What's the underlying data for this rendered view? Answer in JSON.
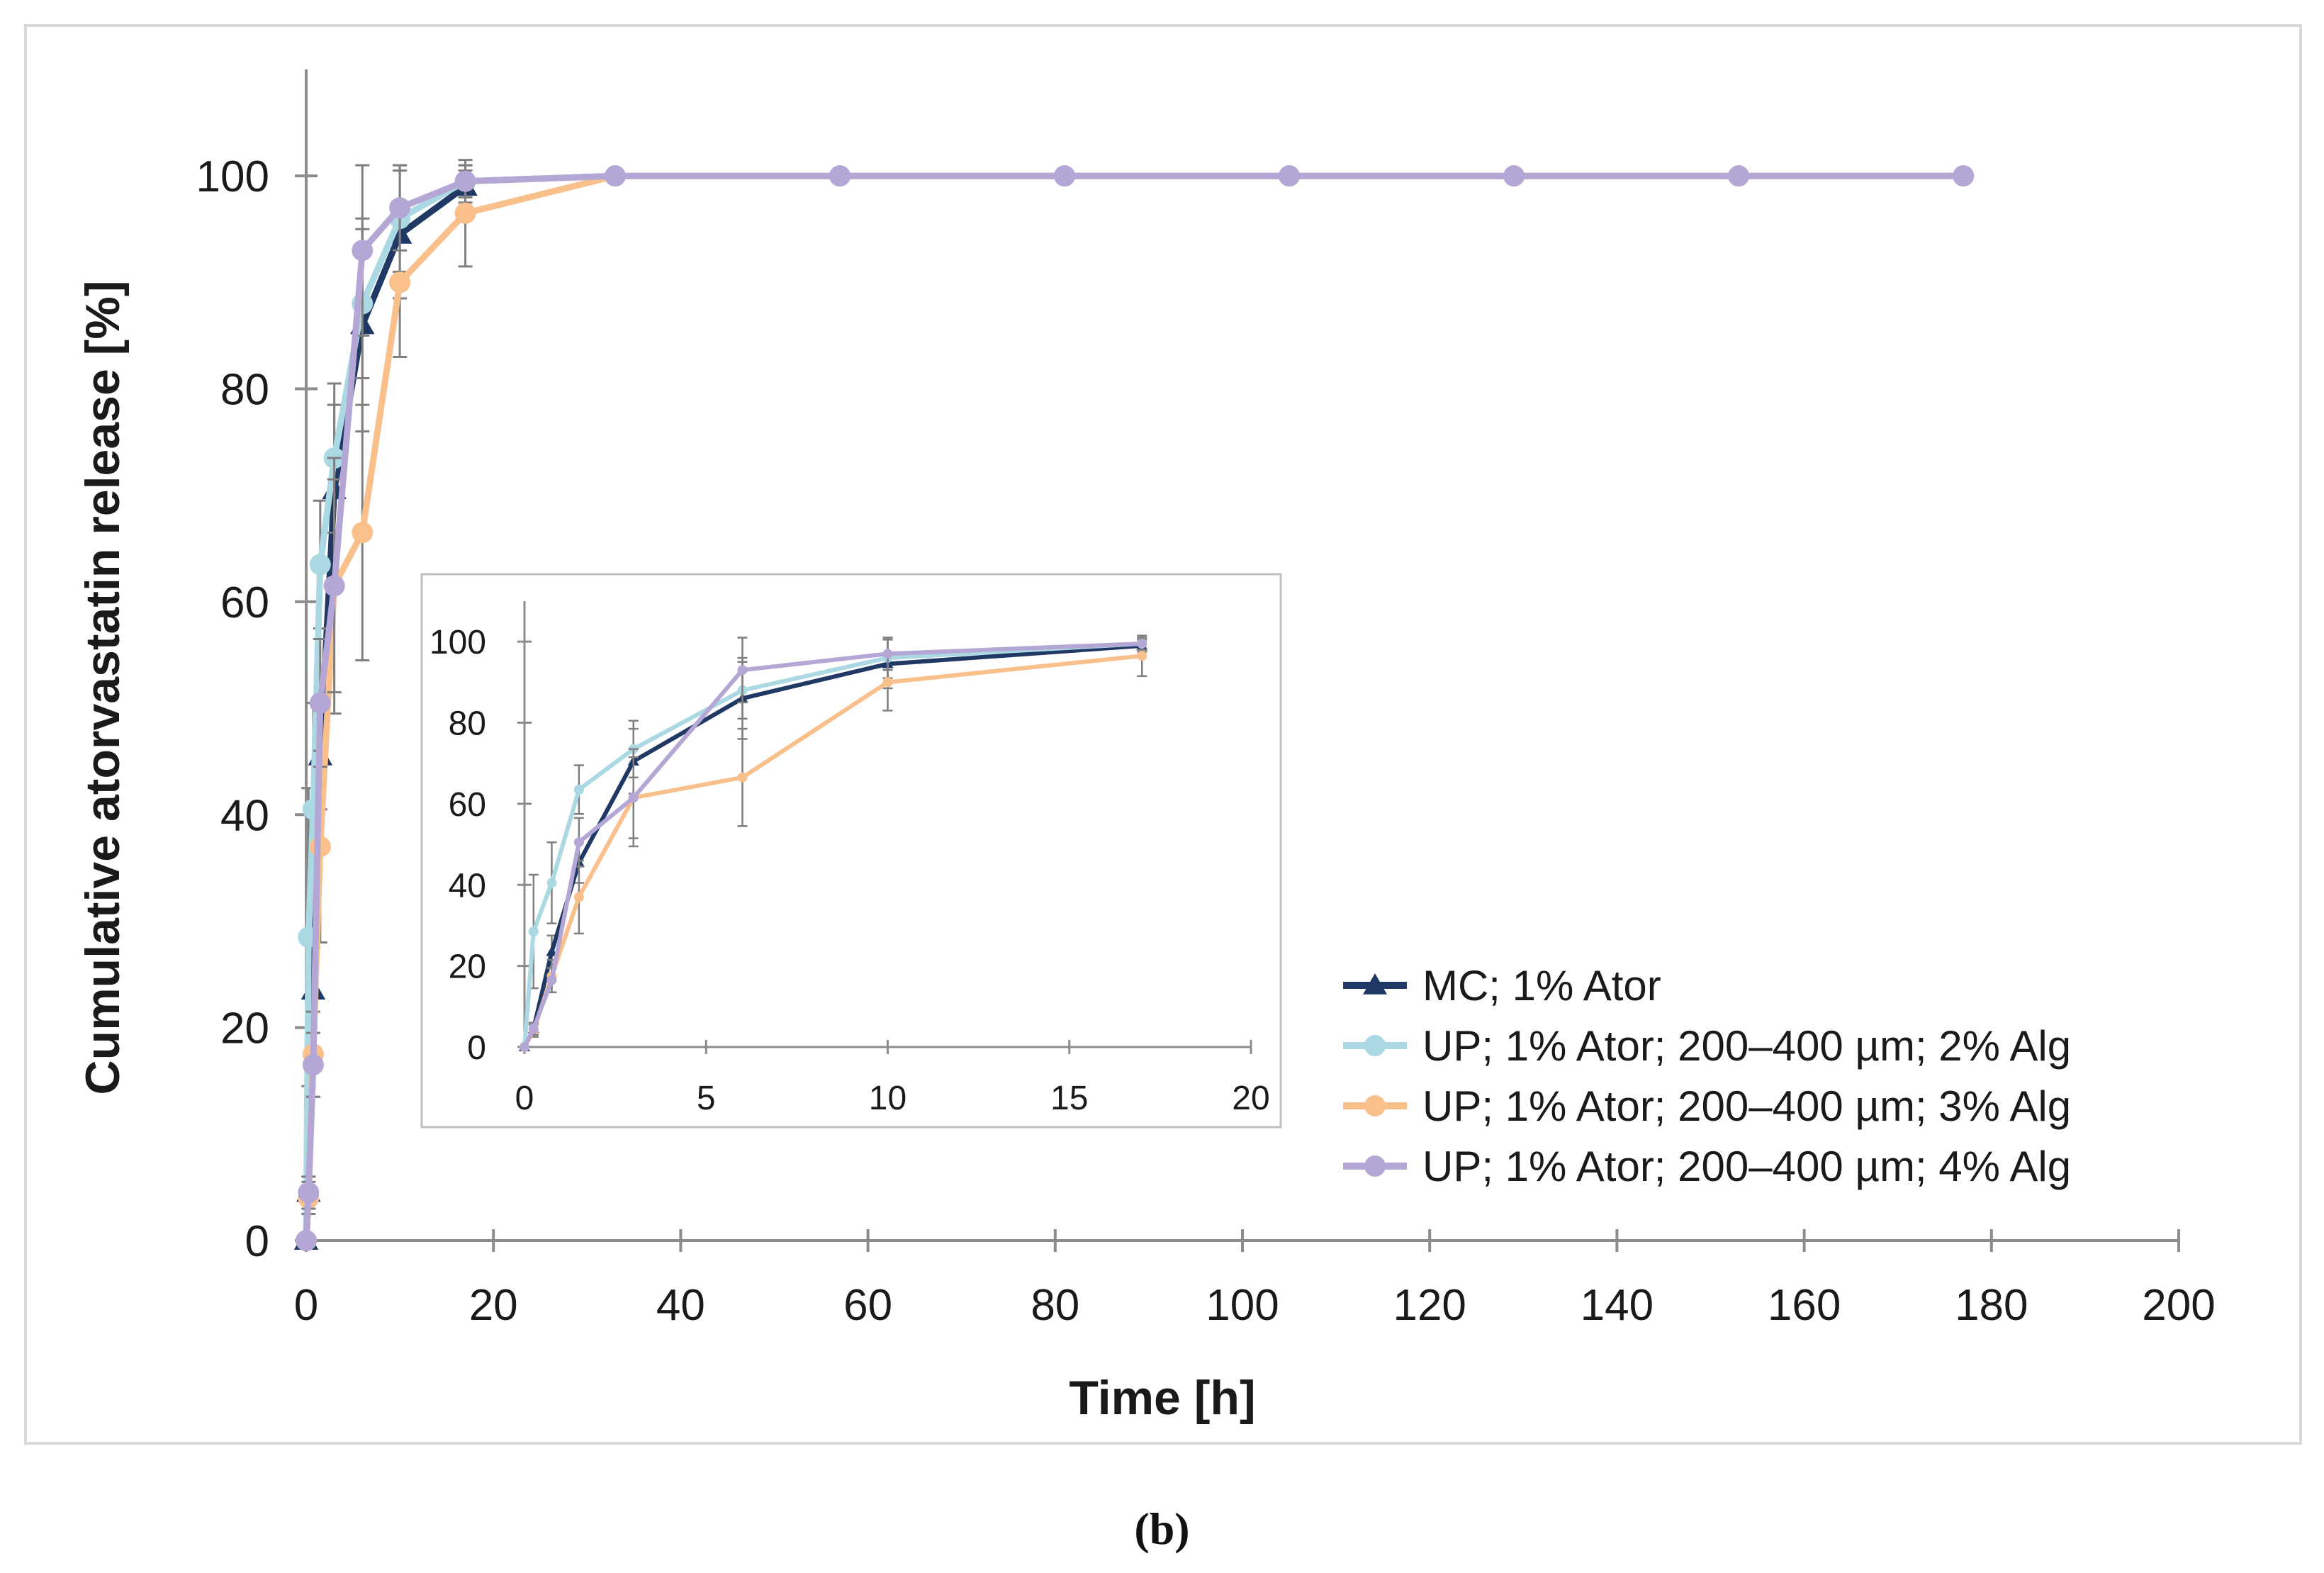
{
  "caption": "(b)",
  "chart_data": {
    "type": "line",
    "title": "",
    "xlabel": "Time [h]",
    "ylabel": "Cumulative atorvastatin release [%]",
    "xlim": [
      0,
      200
    ],
    "ylim": [
      0,
      110
    ],
    "xticks": [
      0,
      20,
      40,
      60,
      80,
      100,
      120,
      140,
      160,
      180,
      200
    ],
    "yticks": [
      0,
      20,
      40,
      60,
      80,
      100
    ],
    "legend_position": "bottom-right",
    "series": [
      {
        "name": "MC; 1% Ator",
        "color": "#1f3864",
        "marker": "triangle",
        "x": [
          0,
          0.25,
          0.75,
          1.5,
          3,
          6,
          10,
          17
        ],
        "y": [
          0,
          4.5,
          23.5,
          45.5,
          70.5,
          86,
          94.5,
          99
        ],
        "err": [
          0,
          1.5,
          4,
          5,
          8,
          10,
          6,
          1.5
        ]
      },
      {
        "name": "UP; 1% Ator; 200–400 µm; 2% Alg",
        "color": "#aad8e3",
        "marker": "circle",
        "x": [
          0,
          0.25,
          0.75,
          1.5,
          3,
          6,
          10,
          17,
          33,
          57,
          81,
          105,
          129,
          153,
          177
        ],
        "y": [
          0,
          28.5,
          40.5,
          63.5,
          73.5,
          88,
          96,
          99.5,
          100,
          100,
          100,
          100,
          100,
          100,
          100
        ],
        "err": [
          0,
          14,
          10,
          6,
          7,
          7,
          5,
          1.5,
          0,
          0,
          0,
          0,
          0,
          0,
          0
        ]
      },
      {
        "name": "UP; 1% Ator; 200–400 µm; 3% Alg",
        "color": "#f9c08c",
        "marker": "circle",
        "x": [
          0,
          0.25,
          0.75,
          1.5,
          3,
          6,
          10,
          17,
          33,
          57,
          81,
          105,
          129,
          153,
          177
        ],
        "y": [
          0,
          4,
          17.5,
          37,
          61.5,
          66.5,
          90,
          96.5,
          100,
          100,
          100,
          100,
          100,
          100,
          100
        ],
        "err": [
          0,
          1.5,
          4,
          9,
          12,
          12,
          7,
          5,
          0,
          0,
          0,
          0,
          0,
          0,
          0
        ]
      },
      {
        "name": "UP; 1% Ator; 200–400 µm; 4% Alg",
        "color": "#b4a7d6",
        "marker": "circle",
        "x": [
          0,
          0.25,
          0.75,
          1.5,
          3,
          6,
          10,
          17,
          33,
          57,
          81,
          105,
          129,
          153,
          177
        ],
        "y": [
          0,
          4.5,
          16.5,
          50.5,
          61.5,
          93,
          97,
          99.5,
          100,
          100,
          100,
          100,
          100,
          100,
          100
        ],
        "err": [
          0,
          1.5,
          3,
          6,
          10,
          8,
          4,
          1.5,
          0,
          0,
          0,
          0,
          0,
          0,
          0
        ]
      }
    ],
    "inset": {
      "xlim": [
        0,
        20
      ],
      "ylim": [
        0,
        110
      ],
      "xticks": [
        0,
        5,
        10,
        15,
        20
      ],
      "yticks": [
        0,
        20,
        40,
        60,
        80,
        100
      ]
    }
  }
}
